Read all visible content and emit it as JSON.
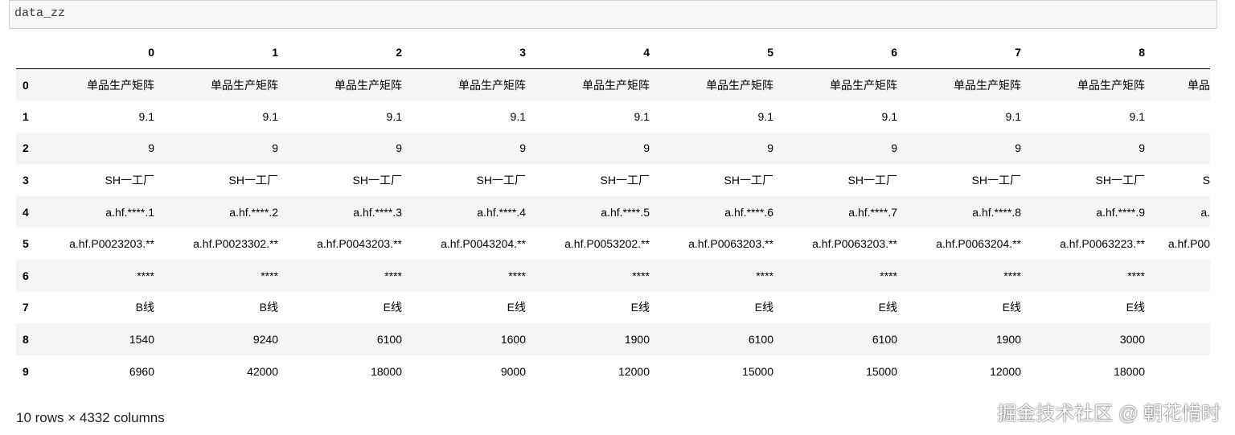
{
  "input_cell": {
    "code": "data_zz"
  },
  "table": {
    "columns": [
      "0",
      "1",
      "2",
      "3",
      "4",
      "5",
      "6",
      "7",
      "8",
      null
    ],
    "index": [
      "0",
      "1",
      "2",
      "3",
      "4",
      "5",
      "6",
      "7",
      "8",
      "9"
    ],
    "rows": [
      [
        "单品生产矩阵",
        "单品生产矩阵",
        "单品生产矩阵",
        "单品生产矩阵",
        "单品生产矩阵",
        "单品生产矩阵",
        "单品生产矩阵",
        "单品生产矩阵",
        "单品生产矩阵",
        "单品"
      ],
      [
        "9.1",
        "9.1",
        "9.1",
        "9.1",
        "9.1",
        "9.1",
        "9.1",
        "9.1",
        "9.1",
        null
      ],
      [
        "9",
        "9",
        "9",
        "9",
        "9",
        "9",
        "9",
        "9",
        "9",
        null
      ],
      [
        "SH一工厂",
        "SH一工厂",
        "SH一工厂",
        "SH一工厂",
        "SH一工厂",
        "SH一工厂",
        "SH一工厂",
        "SH一工厂",
        "SH一工厂",
        "S"
      ],
      [
        "a.hf.****.1",
        "a.hf.****.2",
        "a.hf.****.3",
        "a.hf.****.4",
        "a.hf.****.5",
        "a.hf.****.6",
        "a.hf.****.7",
        "a.hf.****.8",
        "a.hf.****.9",
        "a."
      ],
      [
        "a.hf.P0023203.**",
        "a.hf.P0023302.**",
        "a.hf.P0043203.**",
        "a.hf.P0043204.**",
        "a.hf.P0053202.**",
        "a.hf.P0063203.**",
        "a.hf.P0063203.**",
        "a.hf.P0063204.**",
        "a.hf.P0063223.**",
        "a.hf.P00"
      ],
      [
        "****",
        "****",
        "****",
        "****",
        "****",
        "****",
        "****",
        "****",
        "****",
        null
      ],
      [
        "B线",
        "B线",
        "E线",
        "E线",
        "E线",
        "E线",
        "E线",
        "E线",
        "E线",
        null
      ],
      [
        "1540",
        "9240",
        "6100",
        "1600",
        "1900",
        "6100",
        "6100",
        "1900",
        "3000",
        null
      ],
      [
        "6960",
        "42000",
        "18000",
        "9000",
        "12000",
        "15000",
        "15000",
        "12000",
        "18000",
        null
      ]
    ]
  },
  "footer": "10 rows × 4332 columns",
  "watermark": "掘金技术社区 @ 朝花惜时"
}
